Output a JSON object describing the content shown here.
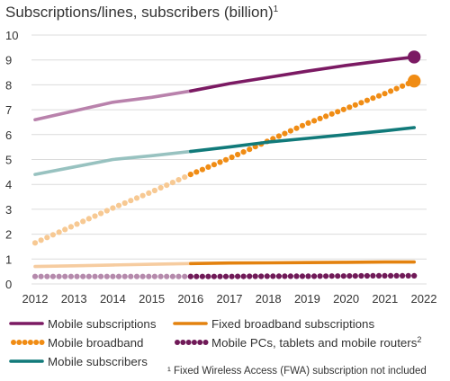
{
  "chart_data": {
    "type": "line",
    "title": "Subscriptions/lines, subscribers (billion)",
    "title_superscript": "1",
    "xlabel": "",
    "ylabel": "",
    "x": [
      2012,
      2013,
      2014,
      2015,
      2016,
      2017,
      2018,
      2019,
      2020,
      2021,
      2022
    ],
    "x_tick_labels": [
      "2012",
      "2013",
      "2014",
      "2015",
      "2016",
      "2017",
      "2018",
      "2019",
      "2020",
      "2021",
      "2022"
    ],
    "xlim": [
      2012,
      2022
    ],
    "y_tick_labels": [
      "0",
      "1",
      "2",
      "3",
      "4",
      "5",
      "6",
      "7",
      "8",
      "9",
      "10"
    ],
    "ylim": [
      0,
      10
    ],
    "grid": "horizontal",
    "historical_until": 2016,
    "forecast_end_x": 2021.75,
    "series": [
      {
        "name": "Mobile subscriptions",
        "style": "solid",
        "color": "#7b1a63",
        "light_color": "#b982ac",
        "end_marker": true,
        "points": [
          [
            2012,
            6.6
          ],
          [
            2013,
            6.95
          ],
          [
            2014,
            7.3
          ],
          [
            2015,
            7.5
          ],
          [
            2016,
            7.75
          ],
          [
            2017,
            8.05
          ],
          [
            2018,
            8.3
          ],
          [
            2019,
            8.55
          ],
          [
            2020,
            8.78
          ],
          [
            2021,
            8.98
          ],
          [
            2021.75,
            9.12
          ]
        ]
      },
      {
        "name": "Mobile broadband",
        "style": "dotted",
        "color": "#f08c14",
        "light_color": "#f7c993",
        "end_marker": true,
        "points": [
          [
            2012,
            1.65
          ],
          [
            2013,
            2.35
          ],
          [
            2014,
            3.05
          ],
          [
            2015,
            3.7
          ],
          [
            2016,
            4.4
          ],
          [
            2017,
            5.05
          ],
          [
            2018,
            5.75
          ],
          [
            2019,
            6.45
          ],
          [
            2020,
            7.05
          ],
          [
            2021,
            7.65
          ],
          [
            2021.75,
            8.15
          ]
        ]
      },
      {
        "name": "Mobile subscribers",
        "style": "solid",
        "color": "#117a7a",
        "light_color": "#98c2c0",
        "end_marker": false,
        "points": [
          [
            2012,
            4.4
          ],
          [
            2013,
            4.7
          ],
          [
            2014,
            5.0
          ],
          [
            2015,
            5.15
          ],
          [
            2016,
            5.32
          ],
          [
            2017,
            5.5
          ],
          [
            2018,
            5.7
          ],
          [
            2019,
            5.85
          ],
          [
            2020,
            6.0
          ],
          [
            2021,
            6.15
          ],
          [
            2021.75,
            6.28
          ]
        ]
      },
      {
        "name": "Fixed broadband subscriptions",
        "style": "solid",
        "color": "#e3820f",
        "light_color": "#f6ccA0",
        "end_marker": false,
        "points": [
          [
            2012,
            0.7
          ],
          [
            2013,
            0.73
          ],
          [
            2014,
            0.76
          ],
          [
            2015,
            0.79
          ],
          [
            2016,
            0.82
          ],
          [
            2017,
            0.84
          ],
          [
            2018,
            0.85
          ],
          [
            2019,
            0.86
          ],
          [
            2020,
            0.87
          ],
          [
            2021,
            0.88
          ],
          [
            2021.75,
            0.88
          ]
        ]
      },
      {
        "name": "Mobile PCs, tablets and mobile routers",
        "name_superscript": "2",
        "style": "dotted",
        "color": "#701a58",
        "light_color": "#b58aac",
        "end_marker": false,
        "points": [
          [
            2012,
            0.3
          ],
          [
            2013,
            0.3
          ],
          [
            2014,
            0.3
          ],
          [
            2015,
            0.3
          ],
          [
            2016,
            0.3
          ],
          [
            2017,
            0.3
          ],
          [
            2018,
            0.31
          ],
          [
            2019,
            0.31
          ],
          [
            2020,
            0.32
          ],
          [
            2021,
            0.33
          ],
          [
            2021.75,
            0.33
          ]
        ]
      }
    ],
    "legend": {
      "placement": "bottom",
      "items": [
        {
          "label": "Mobile subscriptions",
          "superscript": "",
          "style": "solid",
          "color": "#7b1a63"
        },
        {
          "label": "Fixed broadband subscriptions",
          "superscript": "",
          "style": "solid",
          "color": "#e3820f"
        },
        {
          "label": "Mobile broadband",
          "superscript": "",
          "style": "dotted",
          "color": "#f08c14"
        },
        {
          "label": "Mobile PCs, tablets and mobile routers",
          "superscript": "2",
          "style": "dotted",
          "color": "#701a58"
        },
        {
          "label": "Mobile subscribers",
          "superscript": "",
          "style": "solid",
          "color": "#117a7a"
        }
      ]
    },
    "footnote": "¹ Fixed Wireless Access (FWA) subscription not included"
  }
}
